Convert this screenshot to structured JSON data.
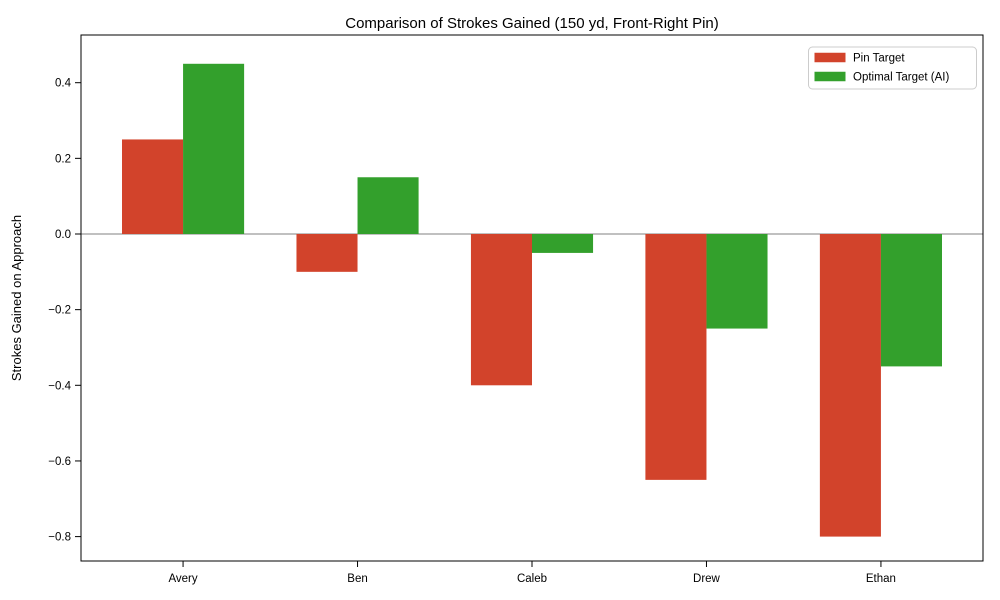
{
  "figure": {
    "background": "#ffffff",
    "frame_color": "#000000",
    "zero_line_color": "#808080",
    "legend": {
      "border_color": "#cccccc",
      "background": "#ffffff",
      "position": "upper right"
    }
  },
  "chart_data": {
    "type": "bar",
    "title": "Comparison of Strokes Gained (150 yd, Front-Right Pin)",
    "xlabel": "",
    "ylabel": "Strokes Gained on Approach",
    "categories": [
      "Avery",
      "Ben",
      "Caleb",
      "Drew",
      "Ethan"
    ],
    "series": [
      {
        "name": "Pin Target",
        "color": "#d2432b",
        "values": [
          0.25,
          -0.1,
          -0.4,
          -0.65,
          -0.8
        ]
      },
      {
        "name": "Optimal Target (AI)",
        "color": "#33a02c",
        "values": [
          0.45,
          0.15,
          -0.05,
          -0.25,
          -0.35
        ]
      }
    ],
    "bar_width_units": 0.35,
    "ylim": [
      -0.8645,
      0.5261
    ],
    "yticks": [
      0.4,
      0.2,
      0.0,
      -0.2,
      -0.4,
      -0.6,
      -0.8
    ],
    "ytick_labels": [
      "0.4",
      "0.2",
      "0.0",
      "−0.2",
      "−0.4",
      "−0.6",
      "−0.8"
    ],
    "grid": false,
    "legend_position": "upper right",
    "zero_line": 0.0
  }
}
